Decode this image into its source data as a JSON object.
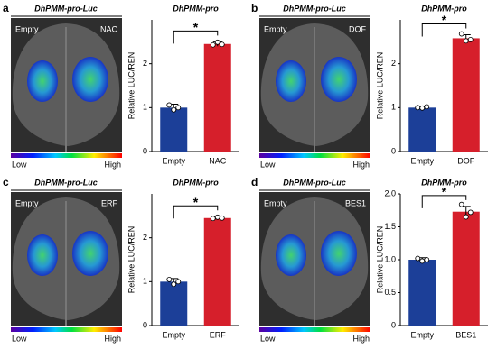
{
  "panels": [
    {
      "label": "a",
      "leaf_title": "DhPMM-pro-Luc",
      "left_label": "Empty",
      "right_label": "NAC",
      "scale_low": "Low",
      "scale_high": "High"
    },
    {
      "label": "b",
      "leaf_title": "DhPMM-pro-Luc",
      "left_label": "Empty",
      "right_label": "DOF",
      "scale_low": "Low",
      "scale_high": "High"
    },
    {
      "label": "c",
      "leaf_title": "DhPMM-pro-Luc",
      "left_label": "Empty",
      "right_label": "ERF",
      "scale_low": "Low",
      "scale_high": "High"
    },
    {
      "label": "d",
      "leaf_title": "DhPMM-pro-Luc",
      "left_label": "Empty",
      "right_label": "BES1",
      "scale_low": "Low",
      "scale_high": "High"
    }
  ],
  "chart_data": [
    {
      "type": "bar",
      "title": "DhPMM-pro",
      "y_label": "Relative LUC/REN",
      "categories": [
        "Empty",
        "NAC"
      ],
      "values": [
        1.0,
        2.45
      ],
      "errors": [
        0.08,
        0.05
      ],
      "points": [
        [
          1.06,
          0.95,
          1.0
        ],
        [
          2.43,
          2.49,
          2.44
        ]
      ],
      "colors": [
        "#1c3f98",
        "#d61f2b"
      ],
      "ylim": [
        0,
        3
      ],
      "yticks": [
        0,
        1,
        2
      ],
      "annotation": "*"
    },
    {
      "type": "bar",
      "title": "DhPMM-pro",
      "y_label": "Relative LUC/REN",
      "categories": [
        "Empty",
        "DOF"
      ],
      "values": [
        1.0,
        2.58
      ],
      "errors": [
        0.03,
        0.08
      ],
      "points": [
        [
          1.0,
          0.99,
          1.02
        ],
        [
          2.68,
          2.52,
          2.55
        ]
      ],
      "colors": [
        "#1c3f98",
        "#d61f2b"
      ],
      "ylim": [
        0,
        3
      ],
      "yticks": [
        0,
        1,
        2
      ],
      "annotation": "*"
    },
    {
      "type": "bar",
      "title": "DhPMM-pro",
      "y_label": "Relative LUC/REN",
      "categories": [
        "Empty",
        "ERF"
      ],
      "values": [
        1.0,
        2.45
      ],
      "errors": [
        0.07,
        0.03
      ],
      "points": [
        [
          1.05,
          0.94,
          1.0
        ],
        [
          2.44,
          2.47,
          2.45
        ]
      ],
      "colors": [
        "#1c3f98",
        "#d61f2b"
      ],
      "ylim": [
        0,
        3
      ],
      "yticks": [
        0,
        1,
        2
      ],
      "annotation": "*"
    },
    {
      "type": "bar",
      "title": "DhPMM-pro",
      "y_label": "Relative LUC/REN",
      "categories": [
        "Empty",
        "BES1"
      ],
      "values": [
        1.0,
        1.73
      ],
      "errors": [
        0.03,
        0.08
      ],
      "points": [
        [
          1.02,
          0.98,
          1.0
        ],
        [
          1.84,
          1.65,
          1.72
        ]
      ],
      "colors": [
        "#1c3f98",
        "#d61f2b"
      ],
      "ylim": [
        0,
        2
      ],
      "yticks": [
        0,
        0.5,
        {
          "value": 1,
          "label": "1.0"
        },
        1.5,
        {
          "value": 2,
          "label": "2.0"
        }
      ],
      "annotation": "*"
    }
  ]
}
